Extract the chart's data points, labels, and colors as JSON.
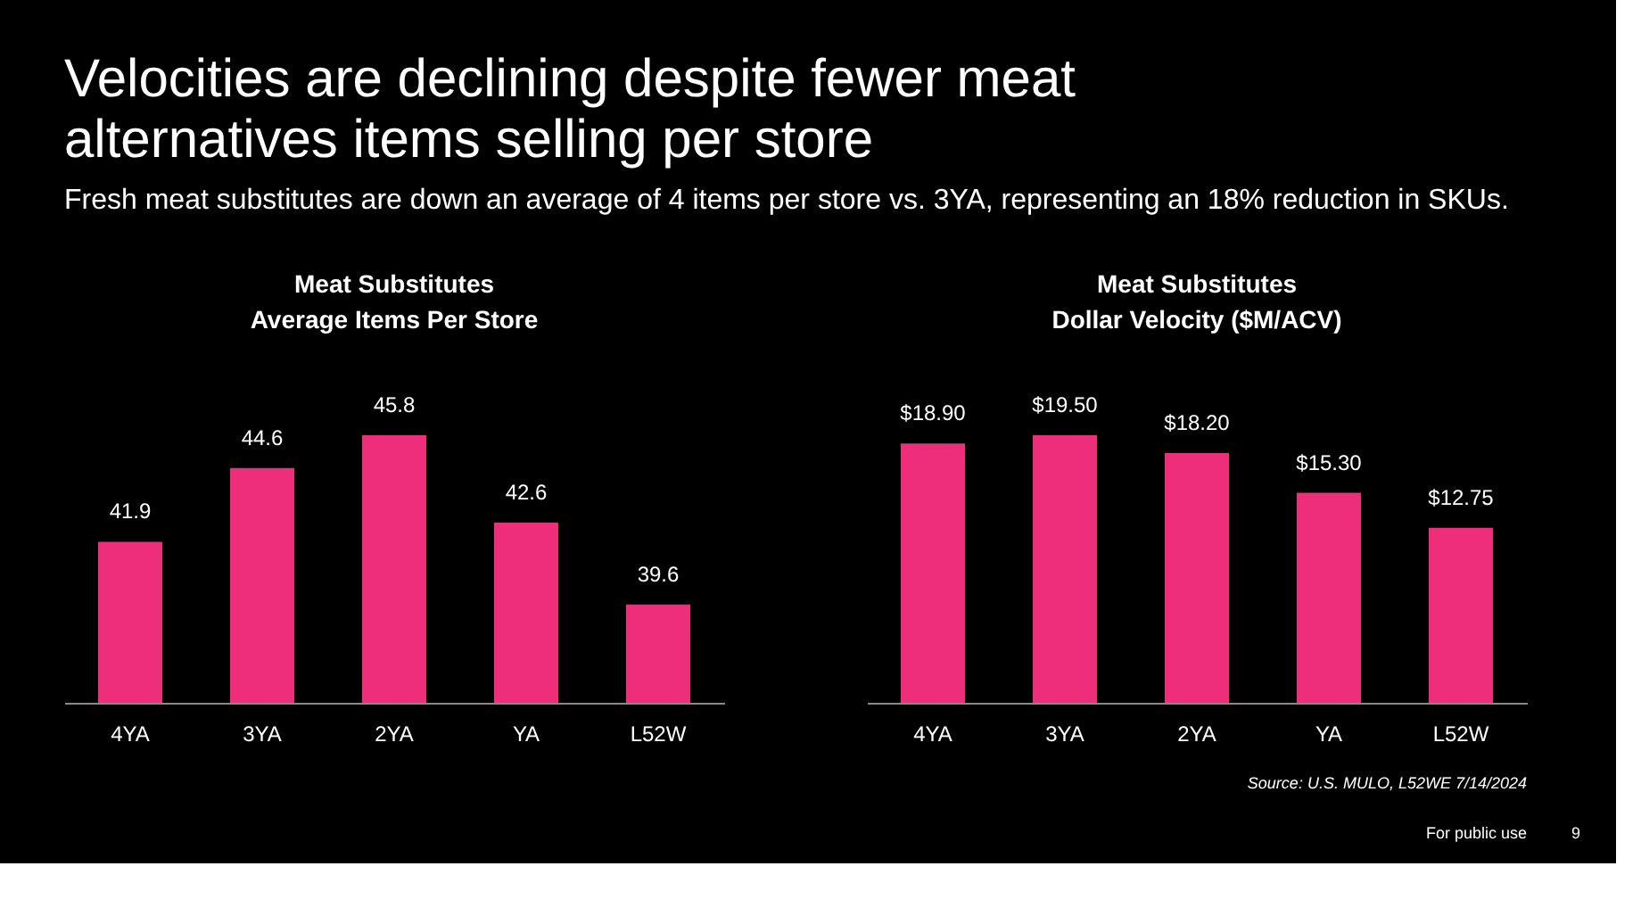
{
  "chart_data": [
    {
      "type": "other",
      "title": "Velocities are declining despite fewer meat\nalternatives items selling per store",
      "subtitle": "Fresh meat substitutes are down an average of 4 items per store vs. 3YA, representing an 18% reduction in SKUs.",
      "annotations": [
        "Source: U.S. MULO, L52WE 7/14/2024",
        "For public use",
        "9"
      ]
    },
    {
      "type": "bar",
      "title": "Meat Substitutes\nAverage Items Per Store",
      "categories": [
        "4YA",
        "3YA",
        "2YA",
        "YA",
        "L52W"
      ],
      "values": [
        41.9,
        44.6,
        45.8,
        42.6,
        39.6
      ],
      "color": "#ee2d7b",
      "ylim": [
        36,
        45.8
      ],
      "data_labels": true
    },
    {
      "type": "bar",
      "title": "Meat Substitutes\nDollar Velocity ($M/ACV)",
      "categories": [
        "4YA",
        "3YA",
        "2YA",
        "YA",
        "L52W"
      ],
      "values": [
        18.9,
        19.5,
        18.2,
        15.3,
        12.75
      ],
      "value_labels": [
        "$18.90",
        "$19.50",
        "$18.20",
        "$15.30",
        "$12.75"
      ],
      "color": "#ee2d7b",
      "ylim": [
        0,
        19.5
      ]
    }
  ]
}
